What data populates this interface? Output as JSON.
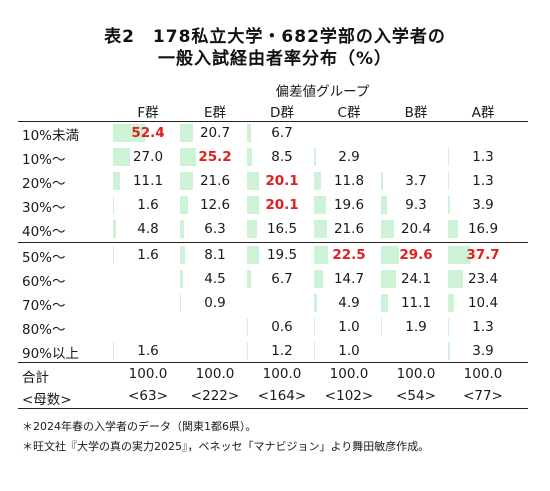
{
  "title_line1": "表2　178私立大学・682学部の入学者の",
  "title_line2": "一般入試経由者率分布（%）",
  "group_header": "偏差値グループ",
  "columns": [
    "F群",
    "E群",
    "D群",
    "C群",
    "B群",
    "A群"
  ],
  "highlight_color": "#e01f1f",
  "bar_color": "#cdf2d6",
  "chart_data": {
    "type": "table",
    "title": "表2　178私立大学・682学部の入学者の一般入試経由者率分布（%）",
    "columns": [
      "F群",
      "E群",
      "D群",
      "C群",
      "B群",
      "A群"
    ],
    "rows": [
      {
        "label": "10%未満",
        "values": [
          52.4,
          20.7,
          6.7,
          null,
          null,
          null
        ],
        "highlight": [
          0
        ]
      },
      {
        "label": "10%～",
        "values": [
          27.0,
          25.2,
          8.5,
          2.9,
          null,
          1.3
        ],
        "highlight": [
          1
        ]
      },
      {
        "label": "20%～",
        "values": [
          11.1,
          21.6,
          20.1,
          11.8,
          3.7,
          1.3
        ],
        "highlight": [
          2
        ]
      },
      {
        "label": "30%～",
        "values": [
          1.6,
          12.6,
          20.1,
          19.6,
          9.3,
          3.9
        ],
        "highlight": [
          2
        ]
      },
      {
        "label": "40%～",
        "values": [
          4.8,
          6.3,
          16.5,
          21.6,
          20.4,
          16.9
        ],
        "highlight": []
      },
      {
        "label": "50%～",
        "values": [
          1.6,
          8.1,
          19.5,
          22.5,
          29.6,
          37.7
        ],
        "highlight": [
          3,
          4,
          5
        ]
      },
      {
        "label": "60%～",
        "values": [
          null,
          4.5,
          6.7,
          14.7,
          24.1,
          23.4
        ],
        "highlight": []
      },
      {
        "label": "70%～",
        "values": [
          null,
          0.9,
          null,
          4.9,
          11.1,
          10.4
        ],
        "highlight": []
      },
      {
        "label": "80%～",
        "values": [
          null,
          null,
          0.6,
          1.0,
          1.9,
          1.3
        ],
        "highlight": []
      },
      {
        "label": "90%以上",
        "values": [
          1.6,
          null,
          1.2,
          1.0,
          null,
          3.9
        ],
        "highlight": []
      }
    ],
    "totals": {
      "label": "合計",
      "values": [
        "100.0",
        "100.0",
        "100.0",
        "100.0",
        "100.0",
        "100.0"
      ]
    },
    "counts": {
      "label": "<母数>",
      "values": [
        "<63>",
        "<222>",
        "<164>",
        "<102>",
        "<54>",
        "<77>"
      ]
    }
  },
  "notes": [
    "＊2024年春の入学者のデータ（関東1都6県）。",
    "＊旺文社『大学の真の実力2025』，ベネッセ「マナビジョン」より舞田敏彦作成。"
  ]
}
